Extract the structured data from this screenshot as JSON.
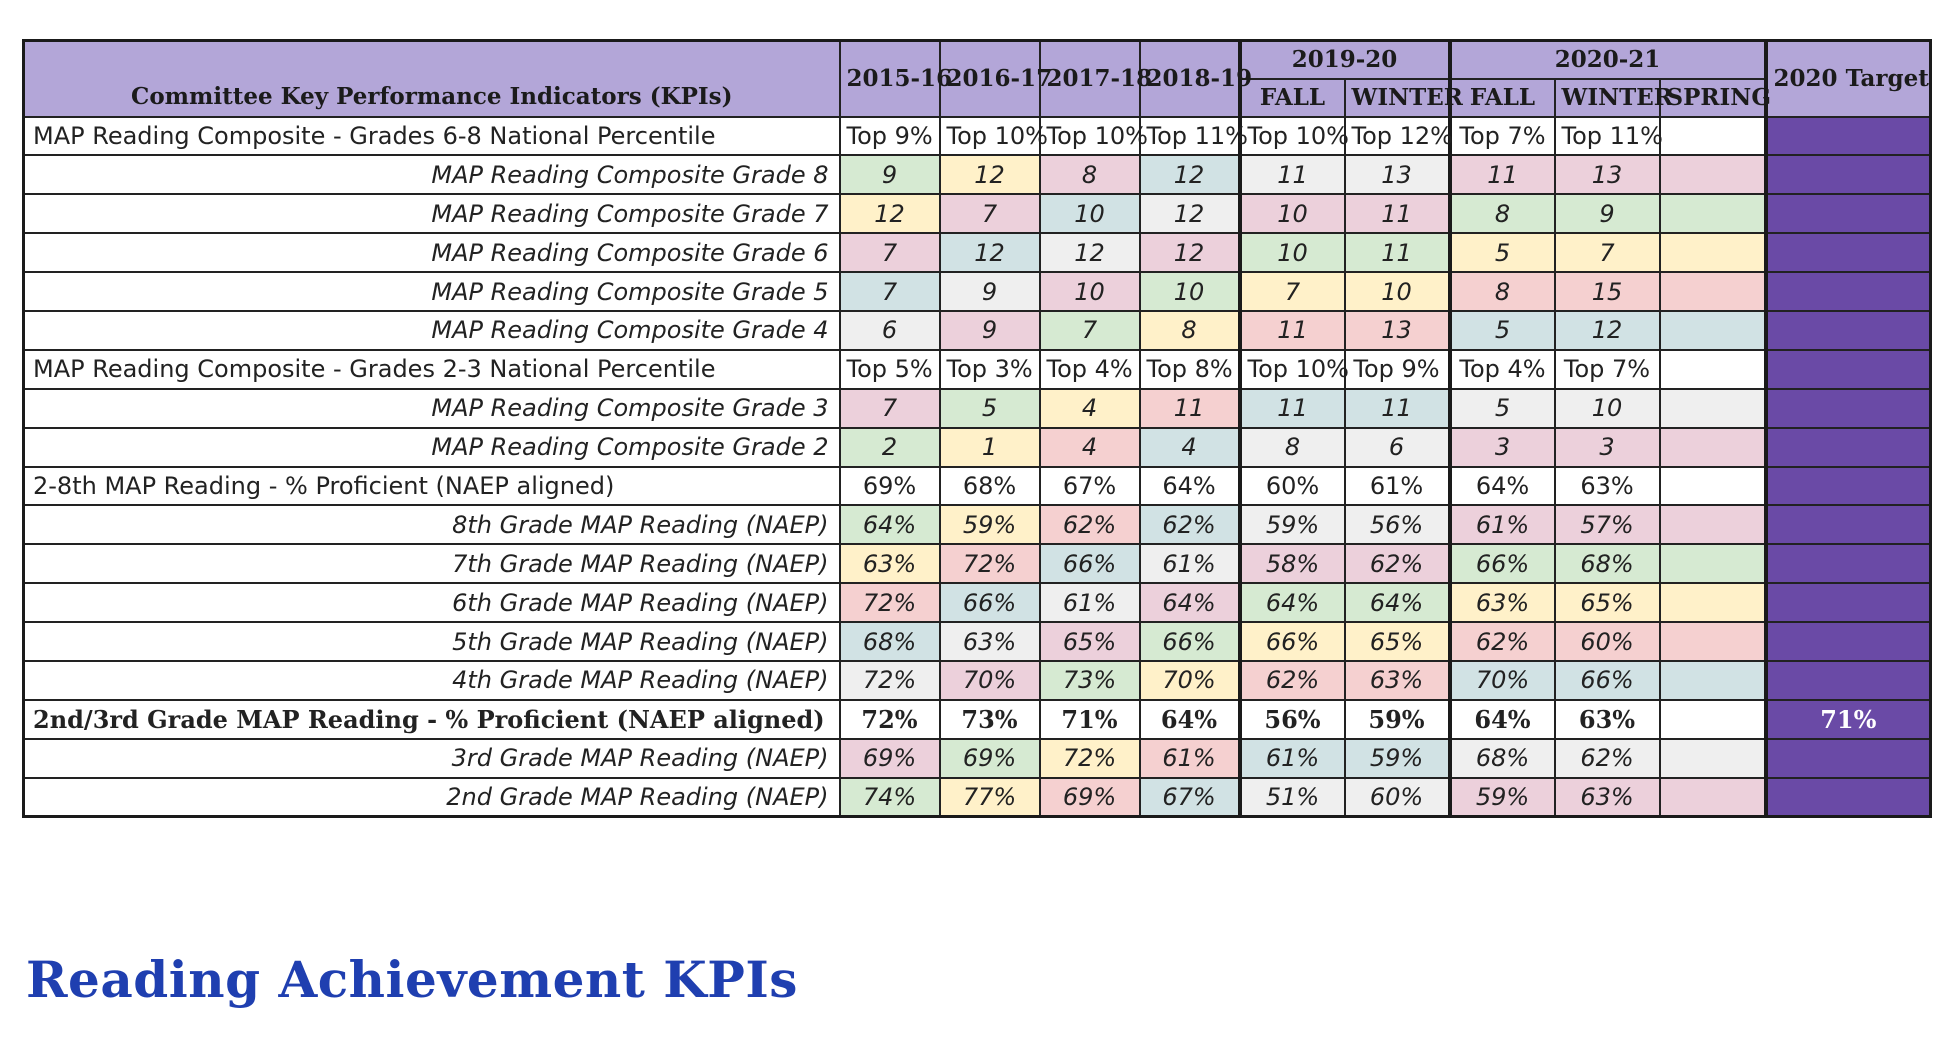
{
  "table": {
    "kpi_header": "Committee Key Performance Indicators (KPIs)",
    "years": [
      "2015-16",
      "2016-17",
      "2017-18",
      "2018-19"
    ],
    "group_2019_20": {
      "label": "2019-20",
      "terms": [
        "FALL",
        "WINTER"
      ]
    },
    "group_2020_21": {
      "label": "2020-21",
      "terms": [
        "FALL",
        "WINTER",
        "SPRING"
      ]
    },
    "target_header": "2020 Target",
    "target_color": "#6a4aa6",
    "header_color": "#b3a6d8",
    "cell_colors": {
      "g": "#d6ead2",
      "y": "#fff1c9",
      "p": "#ecd0db",
      "b": "#d1e2e4",
      "w": "#efefef",
      "r": "#f5d0d0",
      "n": "#ffffff"
    },
    "rows": [
      {
        "kind": "summary",
        "label": "MAP Reading Composite - Grades 6-8 National Percentile",
        "values": [
          "Top 9%",
          "Top 10%",
          "Top 10%",
          "Top 11%",
          "Top 10%",
          "Top 12%",
          "Top 7%",
          "Top 11%",
          ""
        ],
        "colors": [
          "n",
          "n",
          "n",
          "n",
          "n",
          "n",
          "n",
          "n",
          "n"
        ],
        "target": ""
      },
      {
        "kind": "detail",
        "label": "MAP Reading Composite Grade 8",
        "values": [
          "9",
          "12",
          "8",
          "12",
          "11",
          "13",
          "11",
          "13",
          ""
        ],
        "colors": [
          "g",
          "y",
          "p",
          "b",
          "w",
          "w",
          "p",
          "p",
          "p"
        ],
        "target": ""
      },
      {
        "kind": "detail",
        "label": "MAP Reading Composite Grade 7",
        "values": [
          "12",
          "7",
          "10",
          "12",
          "10",
          "11",
          "8",
          "9",
          ""
        ],
        "colors": [
          "y",
          "p",
          "b",
          "w",
          "p",
          "p",
          "g",
          "g",
          "g"
        ],
        "target": ""
      },
      {
        "kind": "detail",
        "label": "MAP Reading Composite Grade 6",
        "values": [
          "7",
          "12",
          "12",
          "12",
          "10",
          "11",
          "5",
          "7",
          ""
        ],
        "colors": [
          "p",
          "b",
          "w",
          "p",
          "g",
          "g",
          "y",
          "y",
          "y"
        ],
        "target": ""
      },
      {
        "kind": "detail",
        "label": "MAP Reading Composite Grade 5",
        "values": [
          "7",
          "9",
          "10",
          "10",
          "7",
          "10",
          "8",
          "15",
          ""
        ],
        "colors": [
          "b",
          "w",
          "p",
          "g",
          "y",
          "y",
          "r",
          "r",
          "r"
        ],
        "target": ""
      },
      {
        "kind": "detail",
        "label": "MAP Reading Composite Grade 4",
        "values": [
          "6",
          "9",
          "7",
          "8",
          "11",
          "13",
          "5",
          "12",
          ""
        ],
        "colors": [
          "w",
          "p",
          "g",
          "y",
          "r",
          "r",
          "b",
          "b",
          "b"
        ],
        "target": ""
      },
      {
        "kind": "summary",
        "label": "MAP Reading Composite - Grades 2-3 National Percentile",
        "values": [
          "Top 5%",
          "Top 3%",
          "Top 4%",
          "Top 8%",
          "Top 10%",
          "Top 9%",
          "Top 4%",
          "Top 7%",
          ""
        ],
        "colors": [
          "n",
          "n",
          "n",
          "n",
          "n",
          "n",
          "n",
          "n",
          "n"
        ],
        "target": ""
      },
      {
        "kind": "detail",
        "label": "MAP Reading Composite Grade 3",
        "values": [
          "7",
          "5",
          "4",
          "11",
          "11",
          "11",
          "5",
          "10",
          ""
        ],
        "colors": [
          "p",
          "g",
          "y",
          "r",
          "b",
          "b",
          "w",
          "w",
          "w"
        ],
        "target": ""
      },
      {
        "kind": "detail",
        "label": "MAP Reading Composite Grade 2",
        "values": [
          "2",
          "1",
          "4",
          "4",
          "8",
          "6",
          "3",
          "3",
          ""
        ],
        "colors": [
          "g",
          "y",
          "r",
          "b",
          "w",
          "w",
          "p",
          "p",
          "p"
        ],
        "target": ""
      },
      {
        "kind": "summary",
        "label": "2-8th MAP Reading - % Proficient (NAEP aligned)",
        "values": [
          "69%",
          "68%",
          "67%",
          "64%",
          "60%",
          "61%",
          "64%",
          "63%",
          ""
        ],
        "colors": [
          "n",
          "n",
          "n",
          "n",
          "n",
          "n",
          "n",
          "n",
          "n"
        ],
        "target": ""
      },
      {
        "kind": "detail",
        "label": "8th Grade MAP Reading (NAEP)",
        "values": [
          "64%",
          "59%",
          "62%",
          "62%",
          "59%",
          "56%",
          "61%",
          "57%",
          ""
        ],
        "colors": [
          "g",
          "y",
          "r",
          "b",
          "w",
          "w",
          "p",
          "p",
          "p"
        ],
        "target": ""
      },
      {
        "kind": "detail",
        "label": "7th Grade MAP Reading (NAEP)",
        "values": [
          "63%",
          "72%",
          "66%",
          "61%",
          "58%",
          "62%",
          "66%",
          "68%",
          ""
        ],
        "colors": [
          "y",
          "r",
          "b",
          "w",
          "p",
          "p",
          "g",
          "g",
          "g"
        ],
        "target": ""
      },
      {
        "kind": "detail",
        "label": "6th Grade MAP Reading (NAEP)",
        "values": [
          "72%",
          "66%",
          "61%",
          "64%",
          "64%",
          "64%",
          "63%",
          "65%",
          ""
        ],
        "colors": [
          "r",
          "b",
          "w",
          "p",
          "g",
          "g",
          "y",
          "y",
          "y"
        ],
        "target": ""
      },
      {
        "kind": "detail",
        "label": "5th Grade MAP Reading (NAEP)",
        "values": [
          "68%",
          "63%",
          "65%",
          "66%",
          "66%",
          "65%",
          "62%",
          "60%",
          ""
        ],
        "colors": [
          "b",
          "w",
          "p",
          "g",
          "y",
          "y",
          "r",
          "r",
          "r"
        ],
        "target": ""
      },
      {
        "kind": "detail",
        "label": "4th Grade MAP Reading (NAEP)",
        "values": [
          "72%",
          "70%",
          "73%",
          "70%",
          "62%",
          "63%",
          "70%",
          "66%",
          ""
        ],
        "colors": [
          "w",
          "p",
          "g",
          "y",
          "r",
          "r",
          "b",
          "b",
          "b"
        ],
        "target": ""
      },
      {
        "kind": "summary-bold",
        "label": "2nd/3rd Grade MAP Reading - % Proficient (NAEP aligned)",
        "values": [
          "72%",
          "73%",
          "71%",
          "64%",
          "56%",
          "59%",
          "64%",
          "63%",
          ""
        ],
        "colors": [
          "n",
          "n",
          "n",
          "n",
          "n",
          "n",
          "n",
          "n",
          "n"
        ],
        "target": "71%"
      },
      {
        "kind": "detail",
        "label": "3rd Grade MAP Reading (NAEP)",
        "values": [
          "69%",
          "69%",
          "72%",
          "61%",
          "61%",
          "59%",
          "68%",
          "62%",
          ""
        ],
        "colors": [
          "p",
          "g",
          "y",
          "r",
          "b",
          "b",
          "w",
          "w",
          "w"
        ],
        "target": ""
      },
      {
        "kind": "detail",
        "label": "2nd Grade MAP Reading (NAEP)",
        "values": [
          "74%",
          "77%",
          "69%",
          "67%",
          "51%",
          "60%",
          "59%",
          "63%",
          ""
        ],
        "colors": [
          "g",
          "y",
          "r",
          "b",
          "w",
          "w",
          "p",
          "p",
          "p"
        ],
        "target": ""
      }
    ]
  },
  "caption": "Reading Achievement KPIs"
}
